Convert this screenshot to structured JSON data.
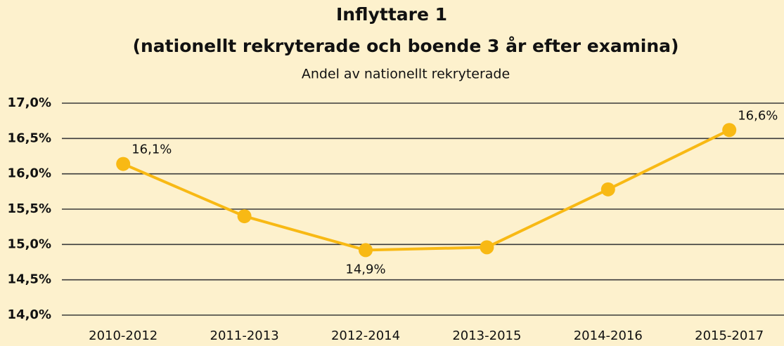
{
  "chart_data": {
    "type": "line",
    "title": [
      "Inflyttare 1",
      "(nationellt rekryterade och boende 3 år efter examina)"
    ],
    "subtitle": "Andel av nationellt rekryterade",
    "categories": [
      "2010-2012",
      "2011-2013",
      "2012-2014",
      "2013-2015",
      "2014-2016",
      "2015-2017"
    ],
    "series": [
      {
        "name": "Andel av nationellt rekryterade",
        "color": "#f8b914",
        "values": [
          16.14,
          15.4,
          14.92,
          14.96,
          15.78,
          16.62
        ],
        "value_labels": [
          "16,1%",
          null,
          "14,9%",
          null,
          null,
          "16,6%"
        ]
      }
    ],
    "ylim": [
      14.0,
      17.0
    ],
    "yticks": [
      {
        "value": 14.0,
        "label": "14,0%"
      },
      {
        "value": 14.5,
        "label": "14,5%"
      },
      {
        "value": 15.0,
        "label": "15,0%"
      },
      {
        "value": 15.5,
        "label": "15,5%"
      },
      {
        "value": 16.0,
        "label": "16,0%"
      },
      {
        "value": 16.5,
        "label": "16,5%"
      },
      {
        "value": 17.0,
        "label": "17,0%"
      }
    ],
    "grid": true
  }
}
